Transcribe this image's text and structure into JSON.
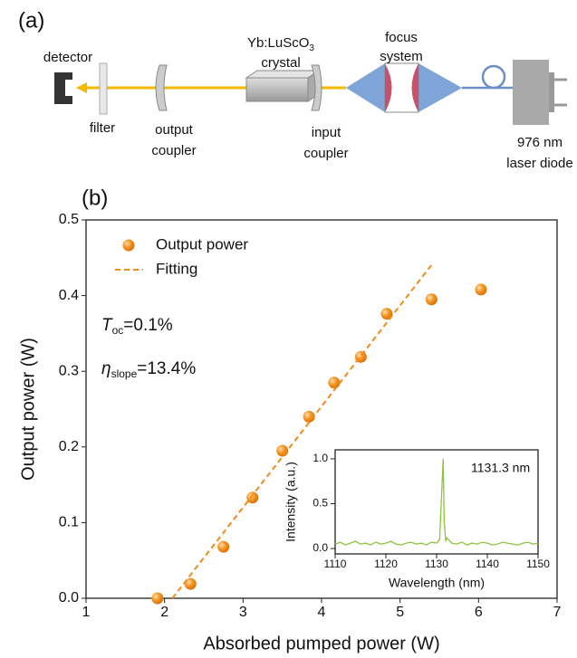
{
  "diagram": {
    "label": "(a)",
    "detector": "detector",
    "filter": "filter",
    "output_coupler": [
      "output",
      "coupler"
    ],
    "crystal": {
      "text": "Yb:LuScO",
      "subscript": "3",
      "line2": "crystal"
    },
    "input_coupler": [
      "input",
      "coupler"
    ],
    "focus_system": [
      "focus",
      "system"
    ],
    "laser_diode": [
      "976 nm",
      "laser diode"
    ]
  },
  "chart_data": [
    {
      "type": "scatter",
      "label": "(b)",
      "xlabel": "Absorbed pumped power (W)",
      "ylabel": "Output power (W)",
      "xlim": [
        1,
        7
      ],
      "xticks": [
        1,
        2,
        3,
        4,
        5,
        6,
        7
      ],
      "ylim": [
        0,
        0.5
      ],
      "yticks": [
        {
          "value": 0,
          "label": "0.0"
        },
        0.1,
        0.2,
        0.3,
        0.4,
        0.5
      ],
      "legend": "upper left",
      "series": [
        {
          "name": "Output power",
          "type": "scatter",
          "color": "#f28a1a",
          "x": [
            1.91,
            2.33,
            2.75,
            3.12,
            3.5,
            3.84,
            4.16,
            4.5,
            4.83,
            5.4,
            6.03
          ],
          "values": [
            0.0,
            0.019,
            0.068,
            0.133,
            0.195,
            0.24,
            0.285,
            0.319,
            0.376,
            0.395,
            0.408
          ]
        },
        {
          "name": "Fitting",
          "type": "line",
          "style": "dashed",
          "color": "#f28a1a",
          "x": [
            2.1,
            5.42
          ],
          "values": [
            0,
            0.443
          ]
        }
      ],
      "annotations": [
        {
          "symbol": "T",
          "subscript": "oc",
          "text": "=0.1%"
        },
        {
          "symbol": "η",
          "subscript": "slope",
          "text": "=13.4%"
        }
      ]
    },
    {
      "type": "line",
      "xlabel": "Wavelength (nm)",
      "ylabel": "Intensity (a.u.)",
      "xlim": [
        1110,
        1150
      ],
      "xticks": [
        1110,
        1120,
        1130,
        1140,
        1150
      ],
      "ylim": [
        -0.06,
        1.1
      ],
      "yticks": [
        {
          "value": 0,
          "label": "0.0"
        },
        0.5,
        {
          "value": 1,
          "label": "1.0"
        }
      ],
      "annotation": "1131.3 nm",
      "series": [
        {
          "color": "#8cc43c",
          "x": [
            1110,
            1111,
            1112,
            1113,
            1114,
            1115,
            1116,
            1117,
            1118,
            1119,
            1120,
            1121,
            1122,
            1123,
            1124,
            1125,
            1126,
            1127,
            1128,
            1129,
            1130,
            1130.6,
            1131,
            1131.3,
            1131.5,
            1131.8,
            1132,
            1133,
            1134,
            1135,
            1136,
            1137,
            1138,
            1139,
            1140,
            1141,
            1142,
            1143,
            1144,
            1145,
            1146,
            1147,
            1148,
            1149,
            1150
          ],
          "values": [
            0.05,
            0.07,
            0.04,
            0.06,
            0.08,
            0.05,
            0.06,
            0.04,
            0.07,
            0.05,
            0.06,
            0.08,
            0.05,
            0.04,
            0.06,
            0.07,
            0.05,
            0.06,
            0.04,
            0.07,
            0.06,
            0.1,
            0.62,
            1.0,
            0.3,
            0.08,
            0.12,
            0.06,
            0.05,
            0.07,
            0.04,
            0.06,
            0.05,
            0.07,
            0.06,
            0.04,
            0.05,
            0.07,
            0.06,
            0.05,
            0.04,
            0.06,
            0.07,
            0.05,
            0.06
          ]
        }
      ]
    }
  ]
}
